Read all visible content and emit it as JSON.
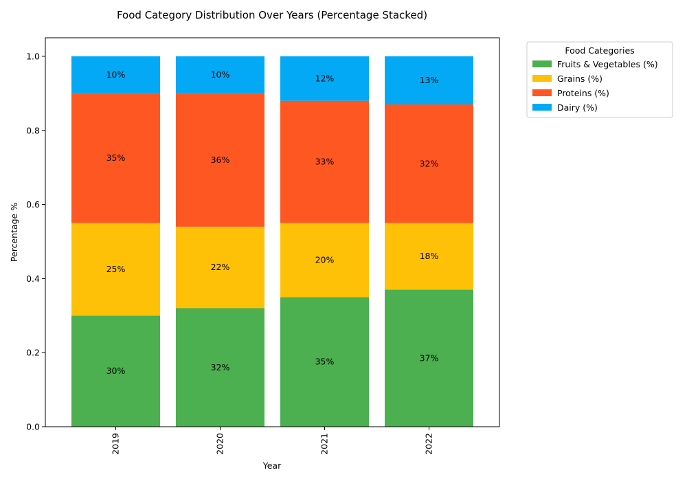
{
  "chart_data": {
    "type": "bar",
    "stacked": true,
    "title": "Food Category Distribution Over Years (Percentage Stacked)",
    "xlabel": "Year",
    "ylabel": "Percentage %",
    "categories": [
      "2019",
      "2020",
      "2021",
      "2022"
    ],
    "ylim": [
      0,
      1.05
    ],
    "yticks": [
      "0.0",
      "0.2",
      "0.4",
      "0.6",
      "0.8",
      "1.0"
    ],
    "ytick_values": [
      0,
      0.2,
      0.4,
      0.6,
      0.8,
      1.0
    ],
    "grid": false,
    "legend": {
      "title": "Food Categories",
      "placement": "outside upper right"
    },
    "series": [
      {
        "name": "Fruits & Vegetables (%)",
        "color": "#4caf50",
        "values": [
          0.3,
          0.32,
          0.35,
          0.37
        ],
        "labels": [
          "30%",
          "32%",
          "35%",
          "37%"
        ]
      },
      {
        "name": "Grains (%)",
        "color": "#ffc107",
        "values": [
          0.25,
          0.22,
          0.2,
          0.18
        ],
        "labels": [
          "25%",
          "22%",
          "20%",
          "18%"
        ]
      },
      {
        "name": "Proteins (%)",
        "color": "#ff5722",
        "values": [
          0.35,
          0.36,
          0.33,
          0.32
        ],
        "labels": [
          "35%",
          "36%",
          "33%",
          "32%"
        ]
      },
      {
        "name": "Dairy (%)",
        "color": "#03a9f4",
        "values": [
          0.1,
          0.1,
          0.12,
          0.13
        ],
        "labels": [
          "10%",
          "10%",
          "12%",
          "13%"
        ]
      }
    ]
  }
}
